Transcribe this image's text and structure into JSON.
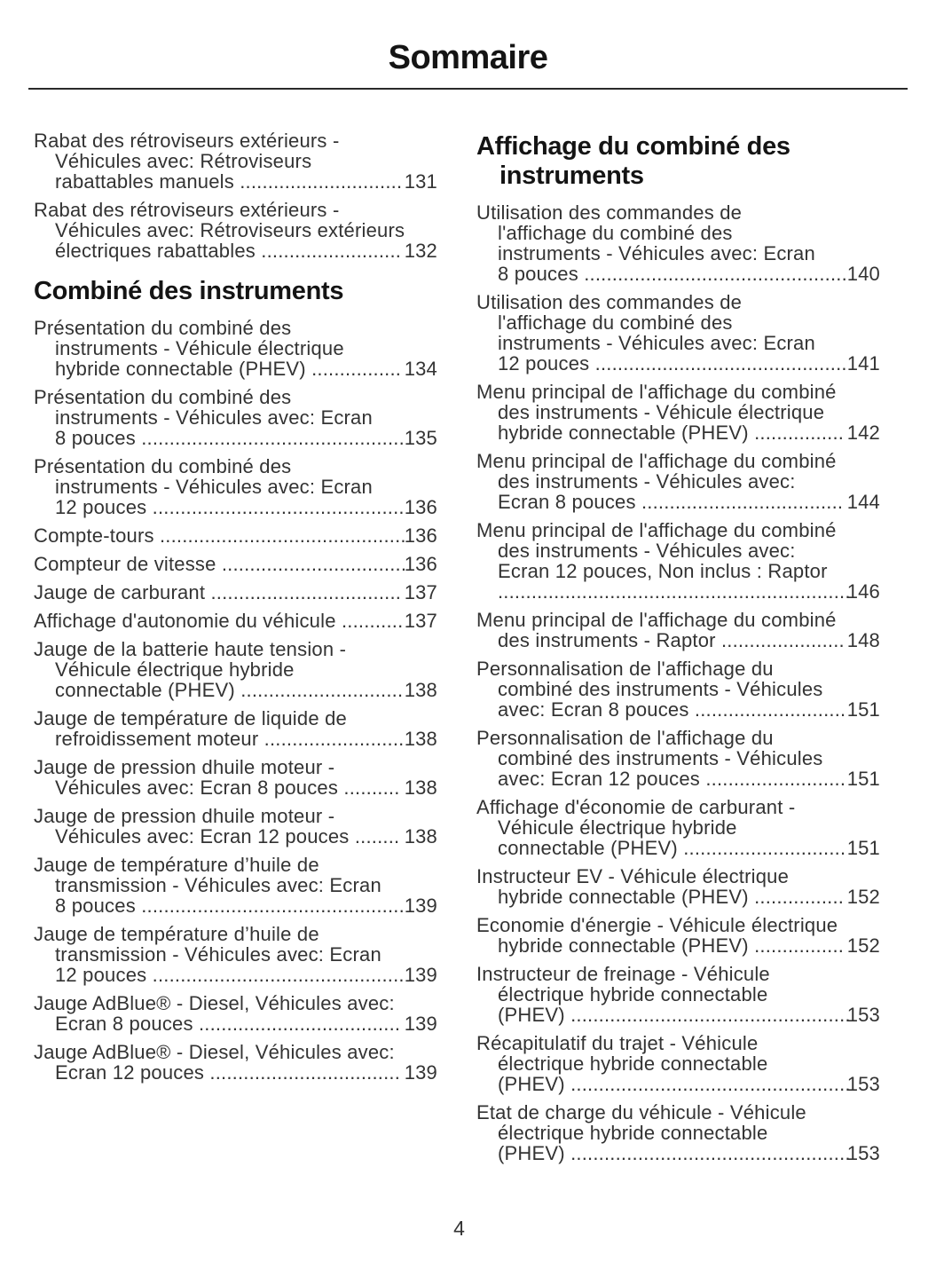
{
  "page_title": "Sommaire",
  "page_number": "4",
  "left_intro": [
    {
      "text": "Rabat des rétroviseurs extérieurs -\nVéhicules avec: Rétroviseurs\nrabattables manuels",
      "dots": " .............................",
      "page": "131"
    },
    {
      "text": "Rabat des rétroviseurs extérieurs -\nVéhicules avec: Rétroviseurs extérieurs\nélectriques rabattables",
      "dots": " .........................",
      "page": "132"
    }
  ],
  "left_section": {
    "heading": "Combiné des instruments",
    "entries": [
      {
        "text": "Présentation du combiné des\ninstruments - Véhicule électrique\nhybride connectable (PHEV)",
        "dots": " ................",
        "page": "134"
      },
      {
        "text": "Présentation du combiné des\ninstruments - Véhicules avec: Ecran\n8 pouces",
        "dots": " ...............................................",
        "page": "135"
      },
      {
        "text": "Présentation du combiné des\ninstruments - Véhicules avec: Ecran\n12 pouces",
        "dots": " .............................................",
        "page": "136"
      },
      {
        "text": "Compte-tours",
        "dots": " ............................................",
        "page": "136"
      },
      {
        "text": "Compteur de vitesse",
        "dots": " .................................",
        "page": "136"
      },
      {
        "text": "Jauge de carburant",
        "dots": " ..................................",
        "page": "137"
      },
      {
        "text": "Affichage d'autonomie du véhicule",
        "dots": " ...........",
        "page": "137"
      },
      {
        "text": "Jauge de la batterie haute tension -\nVéhicule électrique hybride\nconnectable (PHEV)",
        "dots": " .............................",
        "page": "138"
      },
      {
        "text": "Jauge de température de liquide de\nrefroidissement moteur",
        "dots": " .........................",
        "page": "138"
      },
      {
        "text": "Jauge de pression dhuile moteur -\nVéhicules avec: Ecran 8 pouces",
        "dots": " ..........",
        "page": "138"
      },
      {
        "text": "Jauge de pression dhuile moteur -\nVéhicules avec: Ecran 12 pouces",
        "dots": " ........",
        "page": "138"
      },
      {
        "text": "Jauge de température d’huile de\ntransmission - Véhicules avec: Ecran\n8 pouces",
        "dots": " ...............................................",
        "page": "139"
      },
      {
        "text": "Jauge de température d’huile de\ntransmission - Véhicules avec: Ecran\n12 pouces",
        "dots": " .............................................",
        "page": "139"
      },
      {
        "text": "Jauge AdBlue® - Diesel, Véhicules avec:\nEcran 8 pouces",
        "dots": " ....................................",
        "page": "139"
      },
      {
        "text": "Jauge AdBlue® - Diesel, Véhicules avec:\nEcran 12 pouces",
        "dots": " ..................................",
        "page": "139"
      }
    ]
  },
  "right_section": {
    "heading": "Affichage du combiné des\ninstruments",
    "entries": [
      {
        "text": "Utilisation des commandes de\nl'affichage du combiné des\ninstruments - Véhicules avec: Ecran\n8 pouces",
        "dots": " ...............................................",
        "page": "140"
      },
      {
        "text": "Utilisation des commandes de\nl'affichage du combiné des\ninstruments - Véhicules avec: Ecran\n12 pouces",
        "dots": " .............................................",
        "page": "141"
      },
      {
        "text": "Menu principal de l'affichage du combiné\ndes instruments - Véhicule électrique\nhybride connectable (PHEV)",
        "dots": " ................",
        "page": "142"
      },
      {
        "text": "Menu principal de l'affichage du combiné\ndes instruments - Véhicules avec:\nEcran 8 pouces",
        "dots": " ....................................",
        "page": "144"
      },
      {
        "text": "Menu principal de l'affichage du combiné\ndes instruments - Véhicules avec:\nEcran 12 pouces, Non inclus : Raptor\n",
        "dots": "...............................................................",
        "page": "146"
      },
      {
        "text": "Menu principal de l'affichage du combiné\ndes instruments - Raptor",
        "dots": " ......................",
        "page": "148"
      },
      {
        "text": "Personnalisation de l'affichage du\ncombiné des instruments - Véhicules\navec: Ecran 8 pouces",
        "dots": " ...........................",
        "page": "151"
      },
      {
        "text": "Personnalisation de l'affichage du\ncombiné des instruments - Véhicules\navec: Ecran 12 pouces",
        "dots": " .........................",
        "page": "151"
      },
      {
        "text": "Affichage d'économie de carburant -\nVéhicule électrique hybride\nconnectable (PHEV)",
        "dots": " .............................",
        "page": "151"
      },
      {
        "text": "Instructeur EV - Véhicule électrique\nhybride connectable (PHEV)",
        "dots": " ................",
        "page": "152"
      },
      {
        "text": "Economie d'énergie - Véhicule électrique\nhybride connectable (PHEV)",
        "dots": " ................",
        "page": "152"
      },
      {
        "text": "Instructeur de freinage - Véhicule\nélectrique hybride connectable\n(PHEV)",
        "dots": " ..................................................",
        "page": "153"
      },
      {
        "text": "Récapitulatif du trajet - Véhicule\nélectrique hybride connectable\n(PHEV)",
        "dots": " ..................................................",
        "page": "153"
      },
      {
        "text": "Etat de charge du véhicule - Véhicule\nélectrique hybride connectable\n(PHEV)",
        "dots": " ..................................................",
        "page": "153"
      }
    ]
  }
}
